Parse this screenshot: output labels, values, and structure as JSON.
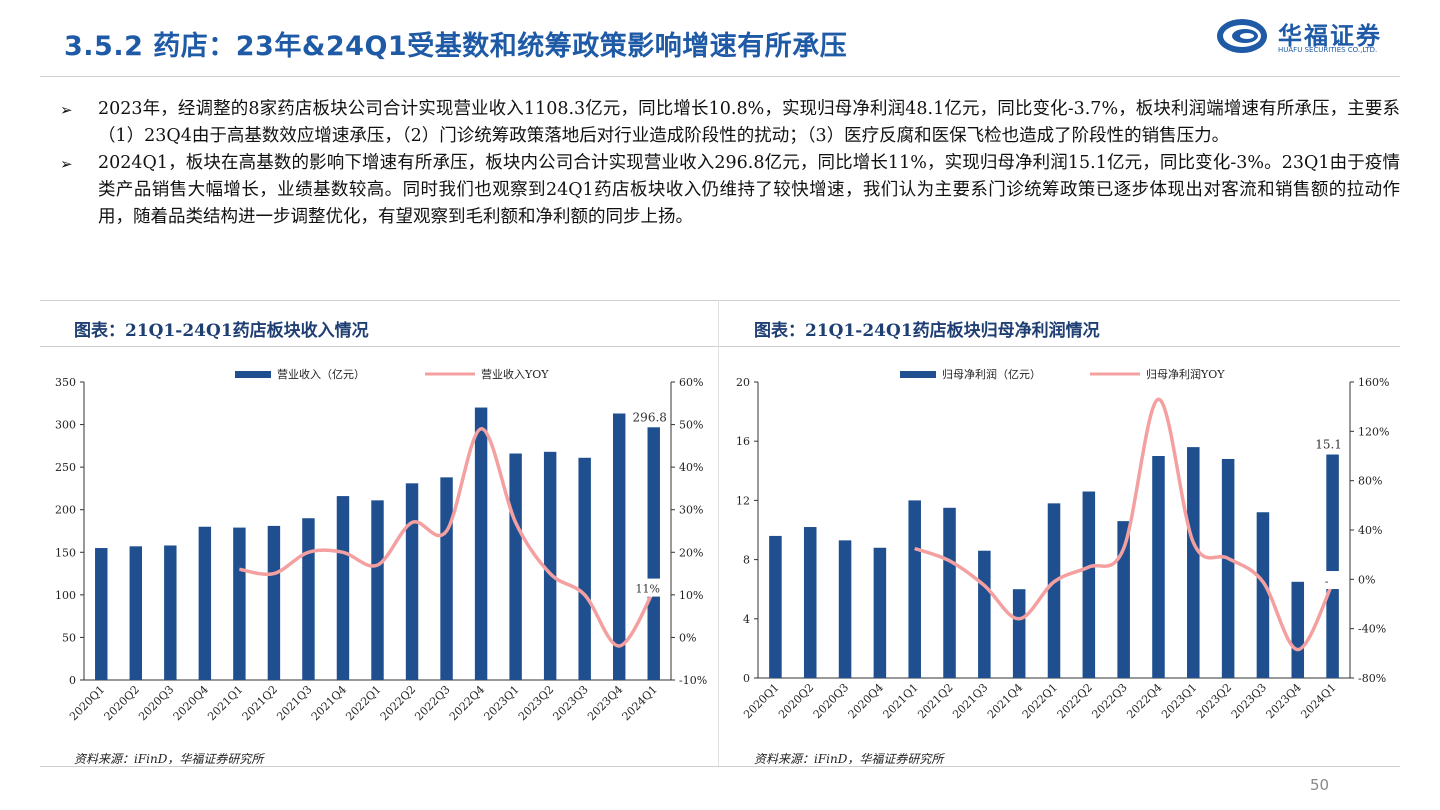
{
  "header": {
    "title": "3.5.2  药店：23年&24Q1受基数和统筹政策影响增速有所承压",
    "logo_cn": "华福证券",
    "logo_en": "HUAFU SECURITIES CO.,LTD."
  },
  "bullets": [
    "2023年，经调整的8家药店板块公司合计实现营业收入1108.3亿元，同比增长10.8%，实现归母净利润48.1亿元，同比变化-3.7%，板块利润端增速有所承压，主要系（1）23Q4由于高基数效应增速承压，（2）门诊统筹政策落地后对行业造成阶段性的扰动；（3）医疗反腐和医保飞检也造成了阶段性的销售压力。",
    "2024Q1，板块在高基数的影响下增速有所承压，板块内公司合计实现营业收入296.8亿元，同比增长11%，实现归母净利润15.1亿元，同比变化-3%。23Q1由于疫情类产品销售大幅增长，业绩基数较高。同时我们也观察到24Q1药店板块收入仍维持了较快增速，我们认为主要系门诊统筹政策已逐步体现出对客流和销售额的拉动作用，随着品类结构进一步调整优化，有望观察到毛利额和净利额的同步上扬。"
  ],
  "charts": {
    "left_title": "图表：21Q1-24Q1药店板块收入情况",
    "right_title": "图表：21Q1-24Q1药店板块归母净利润情况",
    "left_source": "资料来源：iFinD，华福证券研究所",
    "right_source": "资料来源：iFinD，华福证券研究所"
  },
  "page_number": "50",
  "colors": {
    "bar": "#1f4f8f",
    "line": "#f4a0a0",
    "title": "#1f5aa6"
  },
  "chart_data": [
    {
      "type": "bar",
      "categories": [
        "2020Q1",
        "2020Q2",
        "2020Q3",
        "2020Q4",
        "2021Q1",
        "2021Q2",
        "2021Q3",
        "2021Q4",
        "2022Q1",
        "2022Q2",
        "2022Q3",
        "2022Q4",
        "2023Q1",
        "2023Q2",
        "2023Q3",
        "2023Q4",
        "2024Q1"
      ],
      "series": [
        {
          "name": "营业收入（亿元）",
          "type": "bar",
          "axis": "left",
          "values": [
            155,
            157,
            158,
            180,
            179,
            181,
            190,
            216,
            211,
            231,
            238,
            320,
            266,
            268,
            261,
            313,
            296.8
          ]
        },
        {
          "name": "营业收入YOY",
          "type": "line",
          "axis": "right",
          "values": [
            null,
            null,
            null,
            null,
            16,
            15,
            20,
            20,
            17,
            27,
            25,
            49,
            27,
            15,
            10,
            -2,
            11
          ]
        }
      ],
      "ylim": [
        0,
        350
      ],
      "yticks": [
        "0",
        "50",
        "100",
        "150",
        "200",
        "250",
        "300",
        "350"
      ],
      "y2lim": [
        -10,
        60
      ],
      "y2ticks": [
        "-10%",
        "0%",
        "10%",
        "20%",
        "30%",
        "40%",
        "50%",
        "60%"
      ],
      "data_labels": [
        {
          "index": 16,
          "series": 0,
          "text": "296.8"
        },
        {
          "index": 16,
          "series": 1,
          "text": "11%"
        }
      ],
      "legend": "top-center"
    },
    {
      "type": "bar",
      "categories": [
        "2020Q1",
        "2020Q2",
        "2020Q3",
        "2020Q4",
        "2021Q1",
        "2021Q2",
        "2021Q3",
        "2021Q4",
        "2022Q1",
        "2022Q2",
        "2022Q3",
        "2022Q4",
        "2023Q1",
        "2023Q2",
        "2023Q3",
        "2023Q4",
        "2024Q1"
      ],
      "series": [
        {
          "name": "归母净利润（亿元）",
          "type": "bar",
          "axis": "left",
          "values": [
            9.6,
            10.2,
            9.3,
            8.8,
            12.0,
            11.5,
            8.6,
            6.0,
            11.8,
            12.6,
            10.6,
            15.0,
            15.6,
            14.8,
            11.2,
            6.5,
            15.1
          ]
        },
        {
          "name": "归母净利润YOY",
          "type": "line",
          "axis": "right",
          "values": [
            null,
            null,
            null,
            null,
            25,
            15,
            -5,
            -32,
            -2,
            10,
            25,
            146,
            30,
            17,
            -2,
            -57,
            -3
          ]
        }
      ],
      "ylim": [
        0,
        20
      ],
      "yticks": [
        "0",
        "4",
        "8",
        "12",
        "16",
        "20"
      ],
      "y2lim": [
        -80,
        160
      ],
      "y2ticks": [
        "-80%",
        "-40%",
        "0%",
        "40%",
        "80%",
        "120%",
        "160%"
      ],
      "data_labels": [
        {
          "index": 16,
          "series": 0,
          "text": "15.1"
        },
        {
          "index": 16,
          "series": 1,
          "text": "-"
        }
      ],
      "legend": "top-center"
    }
  ]
}
